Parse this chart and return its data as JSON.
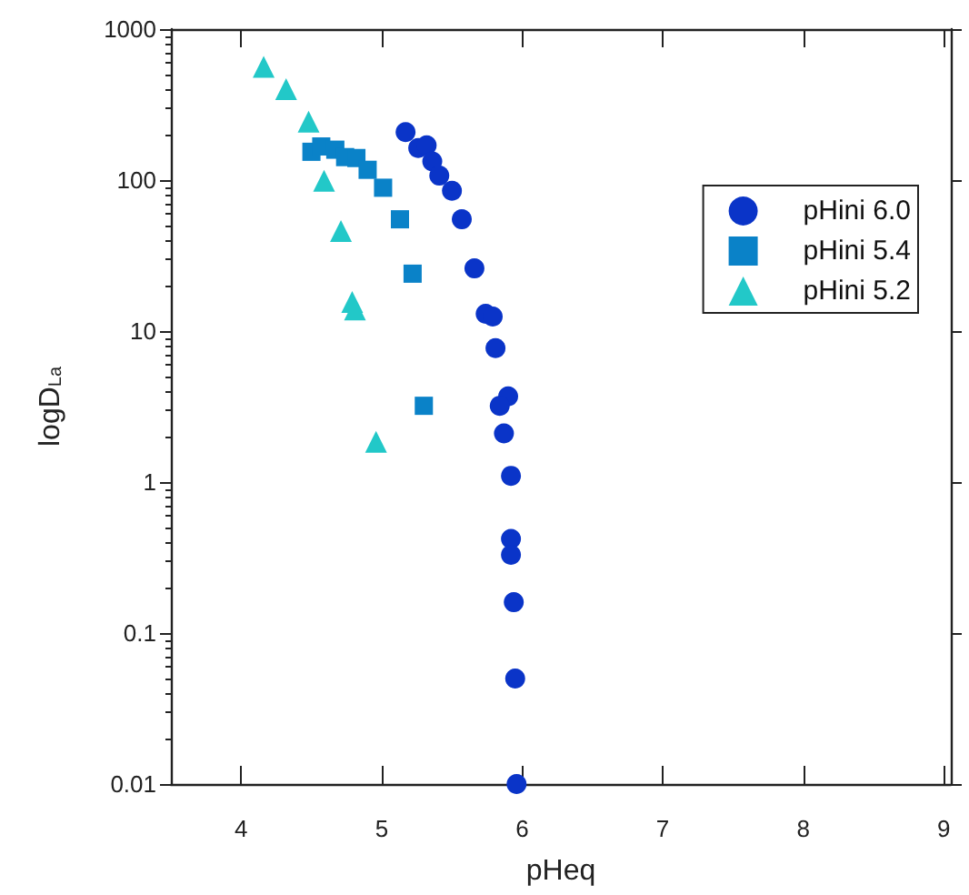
{
  "chart_data": {
    "type": "scatter",
    "xlabel": "pHeq",
    "ylabel": "logD$_{La}$",
    "xlim": [
      3.5,
      9.05
    ],
    "xticks": [
      4,
      5,
      6,
      7,
      8,
      9
    ],
    "ylim": [
      0.01,
      1000
    ],
    "yticks": [
      0.01,
      0.1,
      1,
      10,
      100,
      1000
    ],
    "log": "y",
    "grid": false,
    "legend": "top right",
    "series": [
      {
        "name": "pHini 6.0",
        "color": "#0a34c8",
        "marker": "circle",
        "x": [
          5.17,
          5.26,
          5.32,
          5.36,
          5.41,
          5.5,
          5.57,
          5.66,
          5.74,
          5.79,
          5.81,
          5.9,
          5.84,
          5.87,
          5.92,
          5.92,
          5.92,
          5.94,
          5.95,
          5.96
        ],
        "values": [
          208,
          163,
          170,
          133,
          107,
          85,
          55,
          26,
          13,
          12.5,
          7.7,
          3.7,
          3.2,
          2.1,
          1.1,
          0.42,
          0.33,
          0.16,
          0.05,
          0.01
        ]
      },
      {
        "name": "pHini 5.4",
        "color": "#0a82c8",
        "marker": "square",
        "x": [
          4.5,
          4.57,
          4.67,
          4.74,
          4.82,
          4.9,
          5.01,
          5.13,
          5.22,
          5.3
        ],
        "values": [
          154,
          167,
          159,
          142,
          140,
          117,
          89,
          55,
          24,
          3.2
        ]
      },
      {
        "name": "pHini 5.2",
        "color": "#22c8c8",
        "marker": "triangle",
        "x": [
          4.16,
          4.32,
          4.48,
          4.59,
          4.71,
          4.79,
          4.81,
          4.96
        ],
        "values": [
          562,
          400,
          244,
          99,
          46,
          15.6,
          13.9,
          1.85
        ]
      }
    ]
  }
}
